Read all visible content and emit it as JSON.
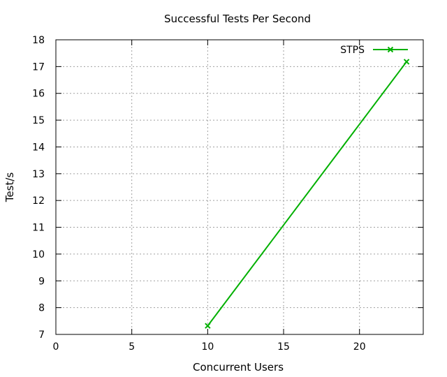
{
  "chart_data": {
    "type": "line",
    "title": "Successful Tests Per Second",
    "xlabel": "Concurrent Users",
    "ylabel": "Test/s",
    "xlim": [
      0,
      24.2
    ],
    "ylim": [
      7,
      18
    ],
    "xticks": [
      0,
      5,
      10,
      15,
      20
    ],
    "yticks": [
      7,
      8,
      9,
      10,
      11,
      12,
      13,
      14,
      15,
      16,
      17,
      18
    ],
    "grid": true,
    "legend_position": "top-right",
    "series": [
      {
        "name": "STPS",
        "color": "#00b000",
        "marker": "x",
        "x": [
          10,
          23.1
        ],
        "y": [
          7.32,
          17.18
        ]
      }
    ]
  }
}
